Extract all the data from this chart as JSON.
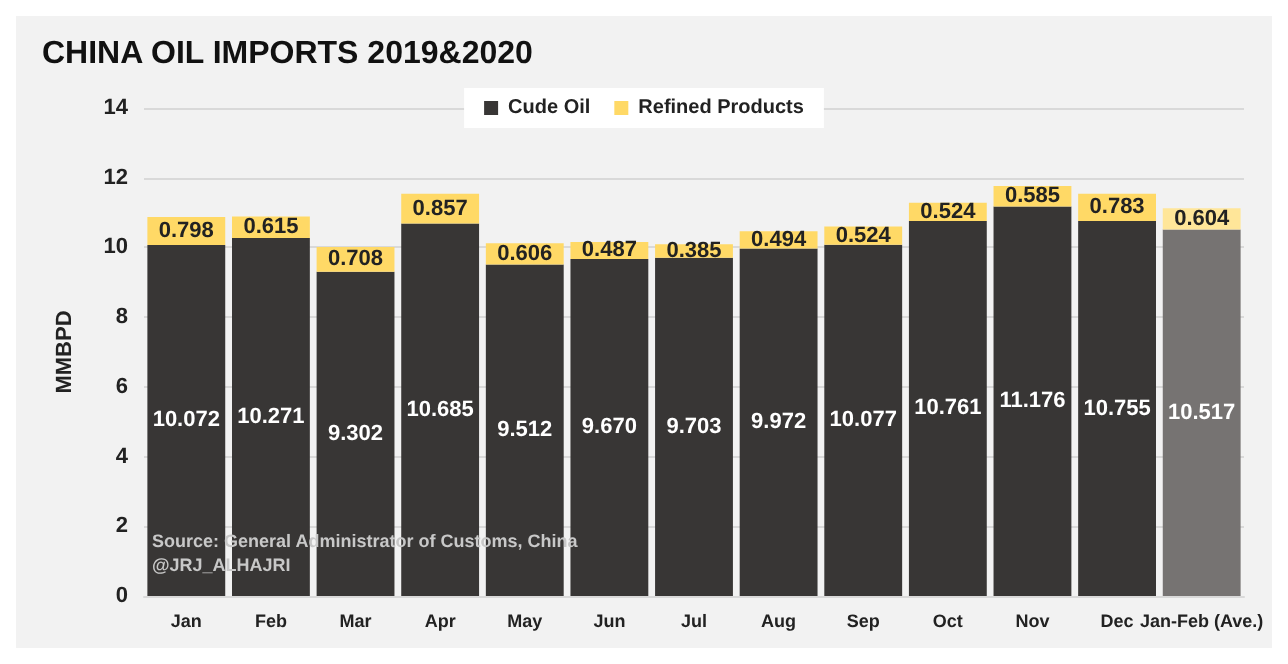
{
  "chart_data": {
    "type": "bar",
    "title": "CHINA OIL IMPORTS 2019&2020",
    "ylabel": "MMBPD",
    "categories": [
      "Jan",
      "Feb",
      "Mar",
      "Apr",
      "May",
      "Jun",
      "Jul",
      "Aug",
      "Sep",
      "Oct",
      "Nov",
      "Dec",
      "Jan-Feb (Ave.)"
    ],
    "series": [
      {
        "name": "Cude Oil",
        "color": "#383635",
        "colors": [
          "#383635",
          "#383635",
          "#383635",
          "#383635",
          "#383635",
          "#383635",
          "#383635",
          "#383635",
          "#383635",
          "#383635",
          "#383635",
          "#383635",
          "#767372"
        ],
        "values": [
          10.072,
          10.271,
          9.302,
          10.685,
          9.512,
          9.67,
          9.703,
          9.972,
          10.077,
          10.761,
          11.176,
          10.755,
          10.517
        ],
        "value_labels": [
          "10.072",
          "10.271",
          "9.302",
          "10.685",
          "9.512",
          "9.670",
          "9.703",
          "9.972",
          "10.077",
          "10.761",
          "11.176",
          "10.755",
          "10.517"
        ]
      },
      {
        "name": "Refined Products",
        "color": "#ffd966",
        "colors": [
          "#ffd966",
          "#ffd966",
          "#ffd966",
          "#ffd966",
          "#ffd966",
          "#ffd966",
          "#ffd966",
          "#ffd966",
          "#ffd966",
          "#ffd966",
          "#ffd966",
          "#ffd966",
          "#ffe699"
        ],
        "values": [
          0.798,
          0.615,
          0.708,
          0.857,
          0.606,
          0.487,
          0.385,
          0.494,
          0.524,
          0.524,
          0.585,
          0.783,
          0.604
        ],
        "value_labels": [
          "0.798",
          "0.615",
          "0.708",
          "0.857",
          "0.606",
          "0.487",
          "0.385",
          "0.494",
          "0.524",
          "0.524",
          "0.585",
          "0.783",
          "0.604"
        ]
      }
    ],
    "stacked": true,
    "ylim": [
      0,
      14
    ],
    "yticks": [
      0,
      2,
      4,
      6,
      8,
      10,
      12,
      14
    ],
    "grid": "y",
    "legend": "top",
    "annotations": [
      "Source: General Administrator of Customs, China",
      "@JRJ_ALHAJRI"
    ]
  }
}
